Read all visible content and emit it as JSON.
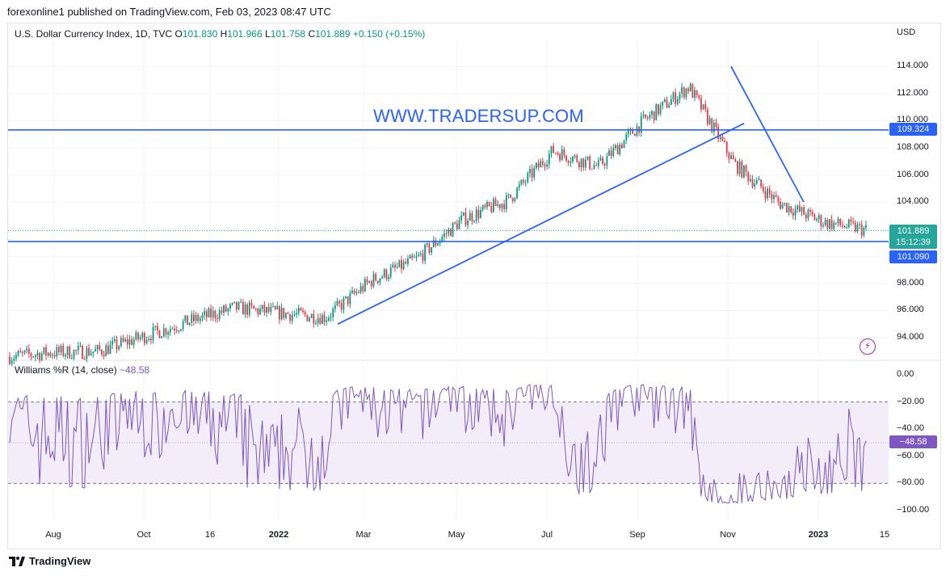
{
  "header": {
    "published": "forexonline1 published on TradingView.com, Feb 03, 2023 08:47 UTC"
  },
  "legend": {
    "symbol": "U.S. Dollar Currency Index, 1D, TVC",
    "o_label": "O",
    "o_value": "101.830",
    "h_label": "H",
    "h_value": "101.966",
    "l_label": "L",
    "l_value": "101.758",
    "c_label": "C",
    "c_value": "101.889",
    "change": "+0.150 (+0.15%)"
  },
  "watermark": "WWW.TRADERSUP.COM",
  "price_axis": {
    "currency": "USD",
    "ticks": [
      "114.000",
      "112.000",
      "110.000",
      "108.000",
      "106.000",
      "104.000",
      "98.000",
      "96.000",
      "94.000"
    ],
    "tick_values": [
      114,
      112,
      110,
      108,
      106,
      104,
      98,
      96,
      94
    ],
    "resistance_tag": "109.324",
    "last_price_tag": "101.889",
    "countdown_tag": "15:12:39",
    "support_tag": "101.090"
  },
  "williams": {
    "label": "Williams %R (14, close)",
    "value": "−48.58",
    "tag": "−48.58",
    "ticks": [
      "0.00",
      "−20.00",
      "−40.00",
      "−60.00",
      "−80.00",
      "−100.00"
    ]
  },
  "time_axis": {
    "labels": [
      "Aug",
      "Oct",
      "16",
      "2022",
      "Mar",
      "May",
      "Jul",
      "Sep",
      "Nov",
      "2023",
      "15"
    ],
    "bold": [
      false,
      false,
      false,
      true,
      false,
      false,
      false,
      false,
      false,
      true,
      false
    ]
  },
  "brand": "TradingView",
  "colors": {
    "up": "#089981",
    "down": "#f23645",
    "line": "#2962ff",
    "williams": "#7e57c2",
    "williams_band": "#ede7f6",
    "last": "#26a69a"
  },
  "chart_data": [
    {
      "type": "candlestick",
      "title": "U.S. Dollar Currency Index, 1D, TVC",
      "y_unit": "USD",
      "x_range": [
        "2021-07",
        "2023-02"
      ],
      "ylim": [
        92.8,
        116.3
      ],
      "horizontal_levels": [
        109.324,
        101.09
      ],
      "last_price": 101.889,
      "trendlines": [
        {
          "name": "rising",
          "points": [
            [
              "2022-02",
              95.0
            ],
            [
              "2022-10",
              109.8
            ]
          ]
        },
        {
          "name": "falling",
          "points": [
            [
              "2022-10",
              114.0
            ],
            [
              "2022-12",
              104.0
            ]
          ]
        }
      ],
      "close_path": [
        [
          "2021-07",
          92.6
        ],
        [
          "2021-08",
          92.9
        ],
        [
          "2021-09",
          93.0
        ],
        [
          "2021-10",
          94.1
        ],
        [
          "2021-11",
          95.2
        ],
        [
          "2021-12",
          96.2
        ],
        [
          "2022-01",
          95.8
        ],
        [
          "2022-02",
          95.5
        ],
        [
          "2022-03",
          98.2
        ],
        [
          "2022-04",
          99.8
        ],
        [
          "2022-05",
          102.7
        ],
        [
          "2022-06",
          104.1
        ],
        [
          "2022-07",
          107.8
        ],
        [
          "2022-08",
          106.6
        ],
        [
          "2022-09",
          110.0
        ],
        [
          "2022-10",
          112.5
        ],
        [
          "2022-11",
          106.8
        ],
        [
          "2022-12",
          103.9
        ],
        [
          "2023-01",
          102.5
        ],
        [
          "2023-02",
          101.889
        ]
      ]
    },
    {
      "type": "line",
      "title": "Williams %R (14, close)",
      "ylim": [
        -100,
        0
      ],
      "levels": [
        -20,
        -80
      ],
      "last_value": -48.58
    }
  ]
}
